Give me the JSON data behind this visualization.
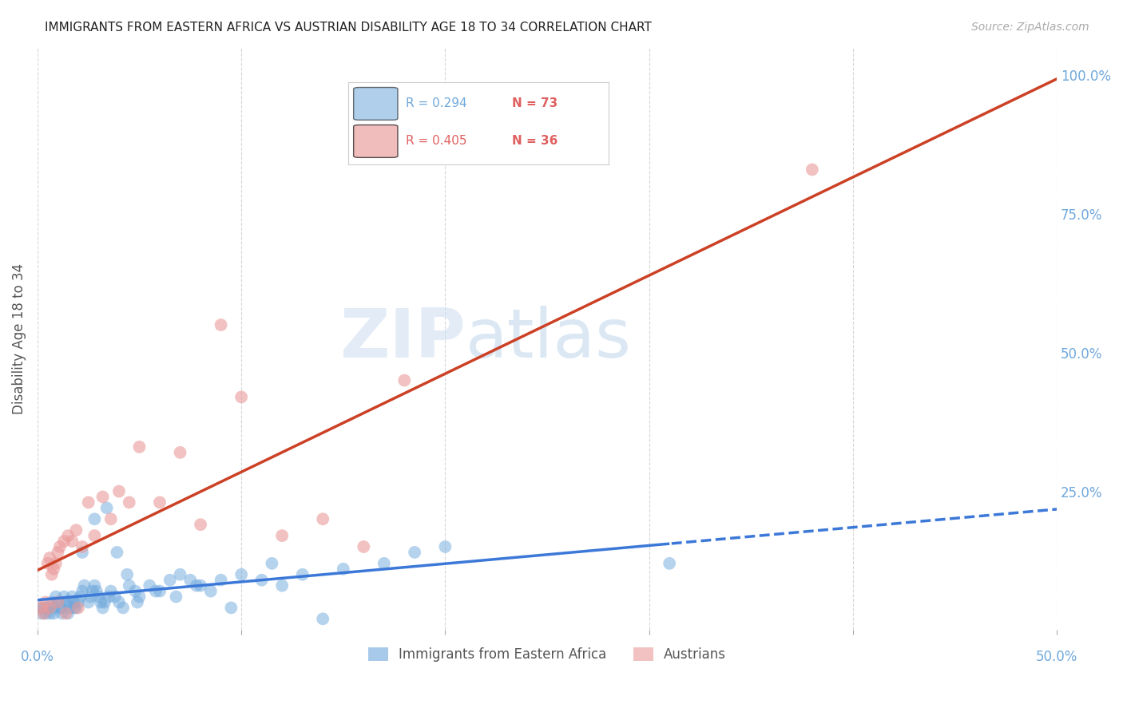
{
  "title": "IMMIGRANTS FROM EASTERN AFRICA VS AUSTRIAN DISABILITY AGE 18 TO 34 CORRELATION CHART",
  "source": "Source: ZipAtlas.com",
  "ylabel": "Disability Age 18 to 34",
  "right_ytick_labels": [
    "100.0%",
    "75.0%",
    "50.0%",
    "25.0%"
  ],
  "right_ytick_values": [
    1.0,
    0.75,
    0.5,
    0.25
  ],
  "xlim": [
    0.0,
    0.5
  ],
  "ylim": [
    0.0,
    1.05
  ],
  "legend_r_blue": "R = 0.294",
  "legend_n_blue": "N = 73",
  "legend_r_pink": "R = 0.405",
  "legend_n_pink": "N = 36",
  "blue_scatter_x": [
    0.005,
    0.006,
    0.007,
    0.008,
    0.009,
    0.01,
    0.011,
    0.012,
    0.013,
    0.014,
    0.015,
    0.016,
    0.017,
    0.018,
    0.019,
    0.02,
    0.021,
    0.022,
    0.023,
    0.025,
    0.026,
    0.027,
    0.028,
    0.029,
    0.03,
    0.031,
    0.032,
    0.033,
    0.035,
    0.036,
    0.038,
    0.04,
    0.042,
    0.045,
    0.048,
    0.05,
    0.055,
    0.06,
    0.065,
    0.07,
    0.075,
    0.08,
    0.085,
    0.09,
    0.1,
    0.11,
    0.12,
    0.13,
    0.15,
    0.17,
    0.004,
    0.003,
    0.002,
    0.001,
    0.008,
    0.012,
    0.015,
    0.018,
    0.022,
    0.028,
    0.034,
    0.039,
    0.044,
    0.049,
    0.058,
    0.068,
    0.078,
    0.095,
    0.115,
    0.14,
    0.185,
    0.2,
    0.31
  ],
  "blue_scatter_y": [
    0.04,
    0.03,
    0.05,
    0.04,
    0.06,
    0.05,
    0.04,
    0.03,
    0.06,
    0.05,
    0.05,
    0.04,
    0.06,
    0.05,
    0.04,
    0.05,
    0.06,
    0.07,
    0.08,
    0.05,
    0.06,
    0.07,
    0.08,
    0.07,
    0.06,
    0.05,
    0.04,
    0.05,
    0.06,
    0.07,
    0.06,
    0.05,
    0.04,
    0.08,
    0.07,
    0.06,
    0.08,
    0.07,
    0.09,
    0.1,
    0.09,
    0.08,
    0.07,
    0.09,
    0.1,
    0.09,
    0.08,
    0.1,
    0.11,
    0.12,
    0.03,
    0.04,
    0.03,
    0.04,
    0.03,
    0.04,
    0.03,
    0.04,
    0.14,
    0.2,
    0.22,
    0.14,
    0.1,
    0.05,
    0.07,
    0.06,
    0.08,
    0.04,
    0.12,
    0.02,
    0.14,
    0.15,
    0.12
  ],
  "pink_scatter_x": [
    0.002,
    0.004,
    0.005,
    0.006,
    0.007,
    0.008,
    0.009,
    0.01,
    0.011,
    0.013,
    0.015,
    0.017,
    0.019,
    0.022,
    0.025,
    0.028,
    0.032,
    0.036,
    0.04,
    0.045,
    0.05,
    0.06,
    0.07,
    0.08,
    0.09,
    0.1,
    0.12,
    0.14,
    0.16,
    0.18,
    0.003,
    0.006,
    0.01,
    0.014,
    0.02,
    0.38
  ],
  "pink_scatter_y": [
    0.04,
    0.05,
    0.12,
    0.13,
    0.1,
    0.11,
    0.12,
    0.14,
    0.15,
    0.16,
    0.17,
    0.16,
    0.18,
    0.15,
    0.23,
    0.17,
    0.24,
    0.2,
    0.25,
    0.23,
    0.33,
    0.23,
    0.32,
    0.19,
    0.55,
    0.42,
    0.17,
    0.2,
    0.15,
    0.45,
    0.03,
    0.04,
    0.05,
    0.03,
    0.04,
    0.83
  ],
  "blue_color": "#6fa8dc",
  "pink_color": "#ea9999",
  "blue_line_color": "#3c78d8",
  "pink_line_color": "#cc4125",
  "background_color": "#ffffff",
  "grid_color": "#cccccc"
}
